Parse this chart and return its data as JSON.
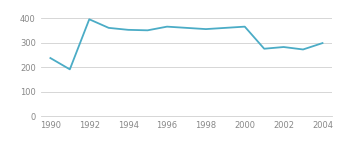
{
  "years": [
    1990,
    1991,
    1992,
    1993,
    1994,
    1995,
    1996,
    1997,
    1998,
    1999,
    2000,
    2001,
    2002,
    2003,
    2004
  ],
  "values": [
    237,
    191,
    395,
    360,
    352,
    350,
    365,
    360,
    355,
    360,
    365,
    275,
    282,
    272,
    298
  ],
  "line_color": "#4bacc6",
  "xlim": [
    1989.5,
    2004.5
  ],
  "ylim": [
    0,
    425
  ],
  "yticks": [
    0,
    100,
    200,
    300,
    400
  ],
  "xticks": [
    1990,
    1992,
    1994,
    1996,
    1998,
    2000,
    2002,
    2004
  ],
  "background_color": "#ffffff",
  "grid_color": "#d0d0d0",
  "tick_label_color": "#888888",
  "line_width": 1.3,
  "tick_fontsize": 6,
  "legend_fontsize": 5.5
}
